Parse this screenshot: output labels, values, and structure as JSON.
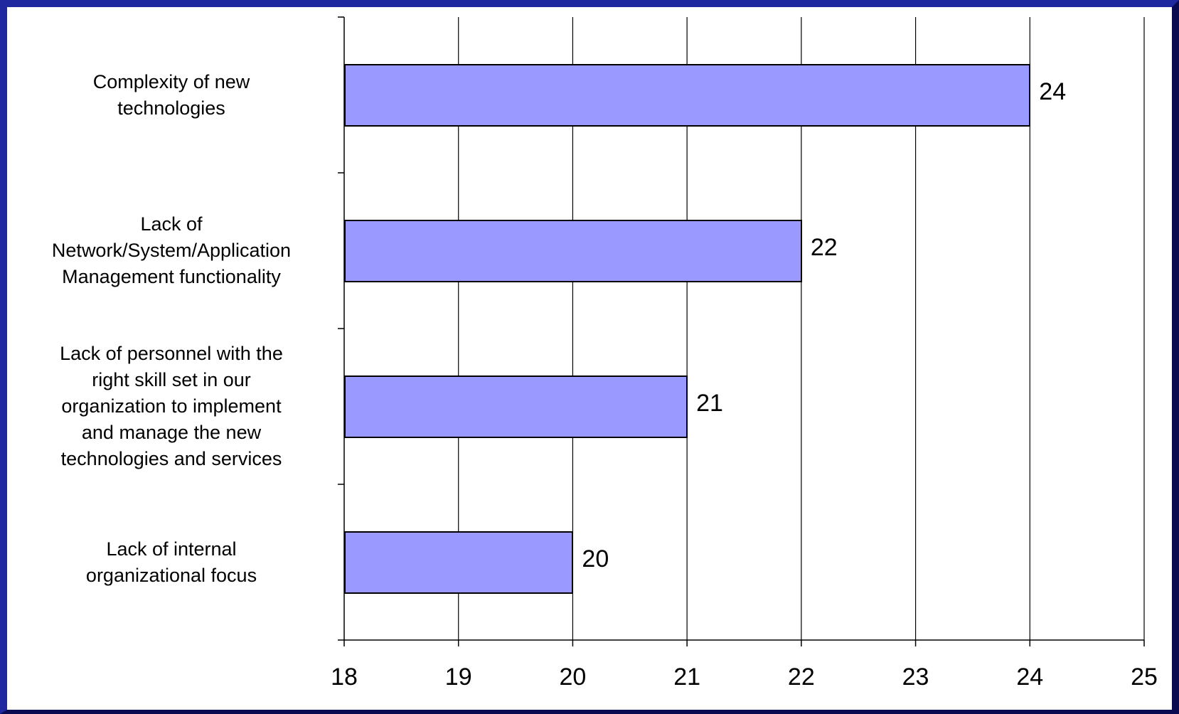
{
  "chart_data": {
    "type": "bar",
    "orientation": "horizontal",
    "categories": [
      "Complexity of new technologies",
      "Lack of Network/System/Application Management functionality",
      "Lack of personnel with the right skill set in our organization to implement and manage the new technologies and services",
      "Lack of internal organizational focus"
    ],
    "category_lines": [
      "Complexity of new\ntechnologies",
      "Lack of\nNetwork/System/Application\nManagement functionality",
      "Lack of personnel with the\nright skill set in our\norganization to implement\nand manage the new\ntechnologies and services",
      "Lack of internal\norganizational focus"
    ],
    "values": [
      24,
      22,
      21,
      20
    ],
    "data_labels": [
      "24",
      "22",
      "21",
      "20"
    ],
    "xlim": [
      18,
      25
    ],
    "x_ticks": [
      "18",
      "19",
      "20",
      "21",
      "22",
      "23",
      "24",
      "25"
    ],
    "grid": "vertical",
    "bar_color": "#9999ff",
    "frame_color": "#2028a0",
    "title": "",
    "xlabel": "",
    "ylabel": ""
  }
}
